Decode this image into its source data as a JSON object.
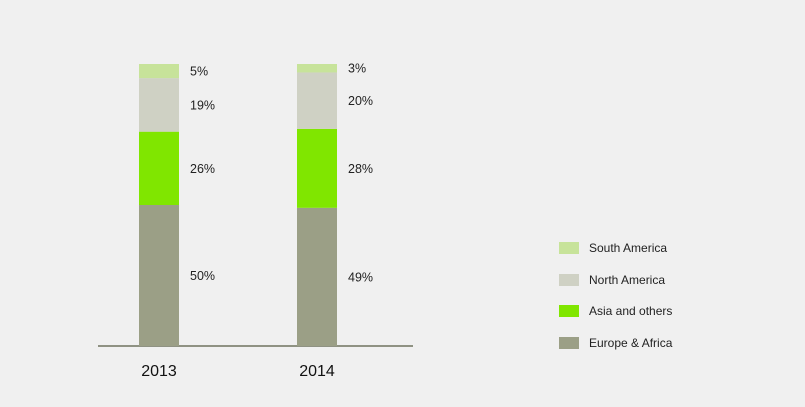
{
  "chart_data": {
    "type": "bar",
    "stacked": true,
    "percent_stacked": true,
    "categories": [
      "2013",
      "2014"
    ],
    "series": [
      {
        "name": "Europe & Africa",
        "values": [
          50,
          49
        ],
        "labels": [
          "50%",
          "49%"
        ],
        "color": "#9b9f86"
      },
      {
        "name": "Asia and others",
        "values": [
          26,
          28
        ],
        "labels": [
          "26%",
          "28%"
        ],
        "color": "#80e600"
      },
      {
        "name": "North America",
        "values": [
          19,
          20
        ],
        "labels": [
          "19%",
          "20%"
        ],
        "color": "#cfd1c4"
      },
      {
        "name": "South America",
        "values": [
          5,
          3
        ],
        "labels": [
          "5%",
          "3%"
        ],
        "color": "#c7e39a"
      }
    ],
    "legend_order": [
      "South America",
      "North America",
      "Asia and others",
      "Europe & Africa"
    ],
    "legend_position": "right",
    "ylim": [
      0,
      100
    ],
    "grid": false,
    "axis_color": "#6f735f"
  }
}
